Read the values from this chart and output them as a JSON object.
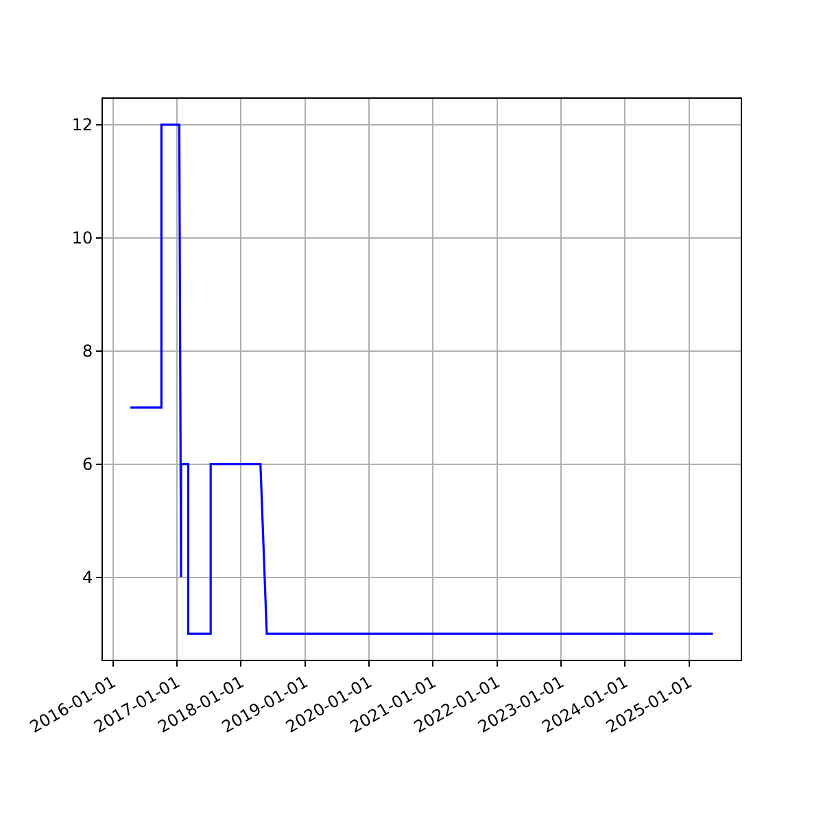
{
  "chart_data": {
    "type": "line",
    "x": [
      "2016-04-10",
      "2016-10-04",
      "2016-10-04",
      "2017-01-14",
      "2017-01-24",
      "2017-01-24",
      "2017-03-06",
      "2017-03-06",
      "2017-07-12",
      "2017-07-12",
      "2018-04-22",
      "2018-05-28",
      "2025-05-16"
    ],
    "series": [
      {
        "color": "#0000ff",
        "values": [
          7,
          7,
          12,
          12,
          4,
          6,
          6,
          3,
          3,
          6,
          6,
          3,
          3
        ]
      }
    ],
    "xlim": [
      "2015-11-05",
      "2025-10-22"
    ],
    "xticks": [
      "2016-01-01",
      "2017-01-01",
      "2018-01-01",
      "2019-01-01",
      "2020-01-01",
      "2021-01-01",
      "2022-01-01",
      "2023-01-01",
      "2024-01-01",
      "2025-01-01"
    ],
    "ylim": [
      2.54,
      12.46
    ],
    "yticks": [
      4,
      6,
      8,
      10,
      12
    ],
    "grid": true,
    "marker": "none",
    "line_style": "solid"
  }
}
